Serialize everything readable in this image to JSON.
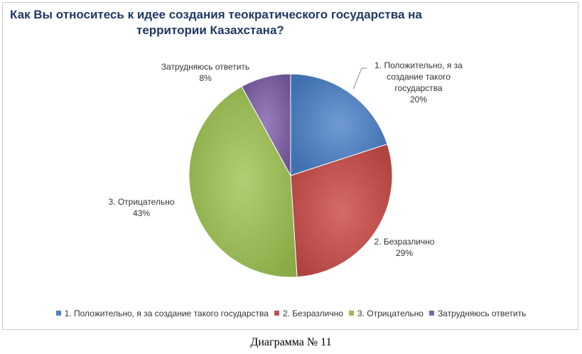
{
  "chart_data": {
    "type": "pie",
    "title_line1": "Как Вы относитесь к идее создания теократического государства на",
    "title_line2": "территории Казахстана?",
    "slices": [
      {
        "label_lines": [
          "1. Положительно,  я за",
          "создание такого",
          "государства"
        ],
        "legend": "1. Положительно,  я за создание такого государства",
        "value": 20,
        "value_label": "20%",
        "color": "#4f81bd"
      },
      {
        "label_lines": [
          "2. Безразлично"
        ],
        "legend": "2. Безразлично",
        "value": 29,
        "value_label": "29%",
        "color": "#c0504d"
      },
      {
        "label_lines": [
          "3. Отрицательно"
        ],
        "legend": "3. Отрицательно",
        "value": 43,
        "value_label": "43%",
        "color": "#9bbb59"
      },
      {
        "label_lines": [
          "Затрудняюсь ответить"
        ],
        "legend": "Затрудняюсь ответить",
        "value": 8,
        "value_label": "8%",
        "color": "#8064a2"
      }
    ],
    "legend_placement": "bottom"
  },
  "caption": "Диаграмма № 11"
}
